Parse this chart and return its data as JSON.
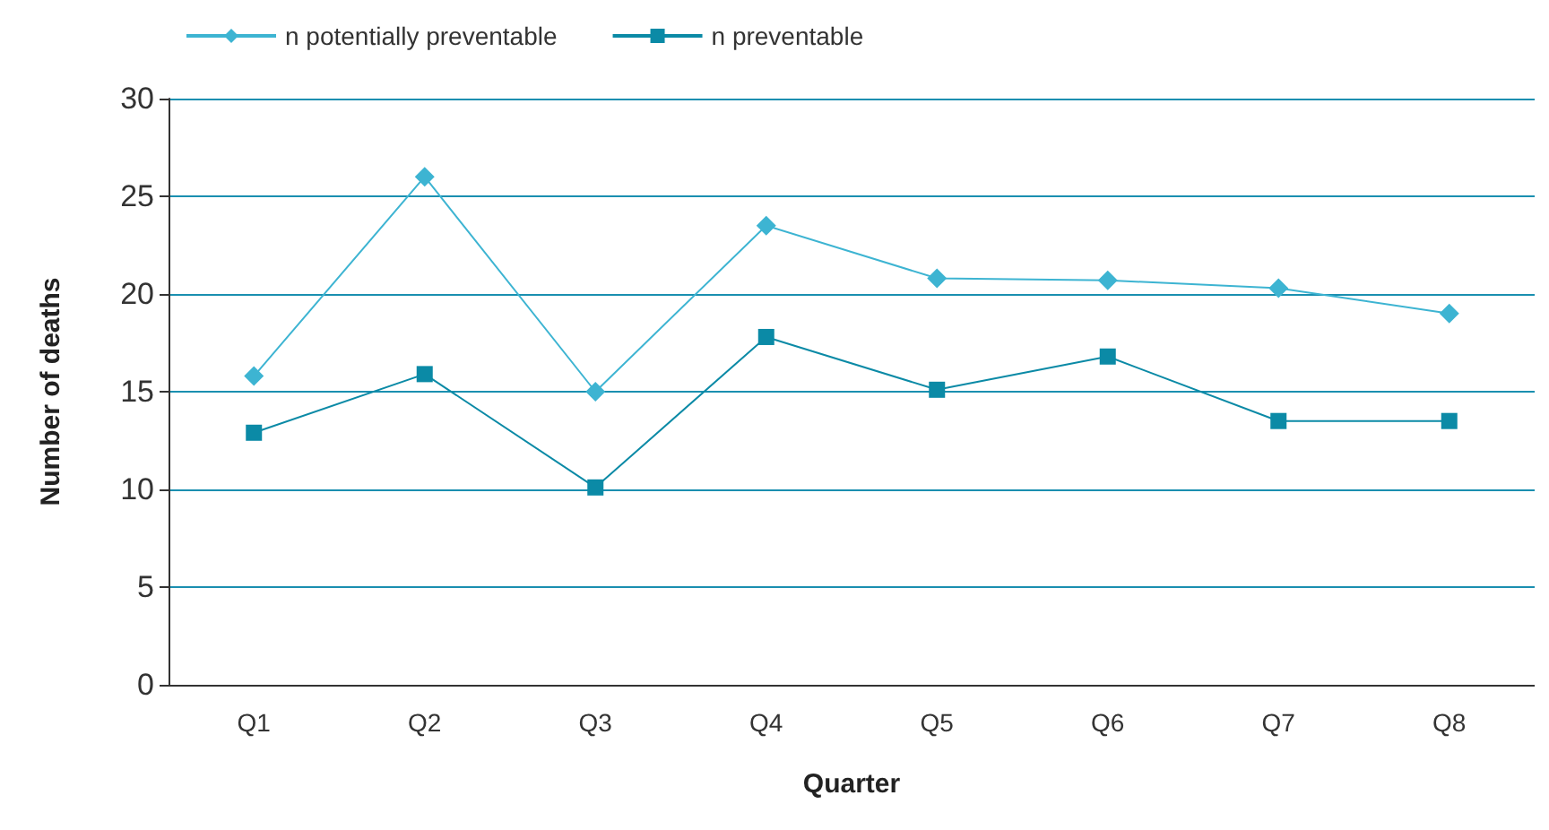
{
  "chart_data": {
    "type": "line",
    "xlabel": "Quarter",
    "ylabel": "Number of deaths",
    "categories": [
      "Q1",
      "Q2",
      "Q3",
      "Q4",
      "Q5",
      "Q6",
      "Q7",
      "Q8"
    ],
    "series": [
      {
        "name": "n potentially preventable",
        "color": "#3db4d2",
        "marker": "diamond",
        "values": [
          15.8,
          26,
          15,
          23.5,
          20.8,
          20.7,
          20.3,
          19
        ]
      },
      {
        "name": "n preventable",
        "color": "#0b8aa6",
        "marker": "square",
        "values": [
          12.9,
          15.9,
          10.1,
          17.8,
          15.1,
          16.8,
          13.5,
          13.5
        ]
      }
    ],
    "ylim": [
      0,
      30
    ],
    "yticks": [
      0,
      5,
      10,
      15,
      20,
      25,
      30
    ],
    "grid": "y",
    "legend": "top left"
  }
}
